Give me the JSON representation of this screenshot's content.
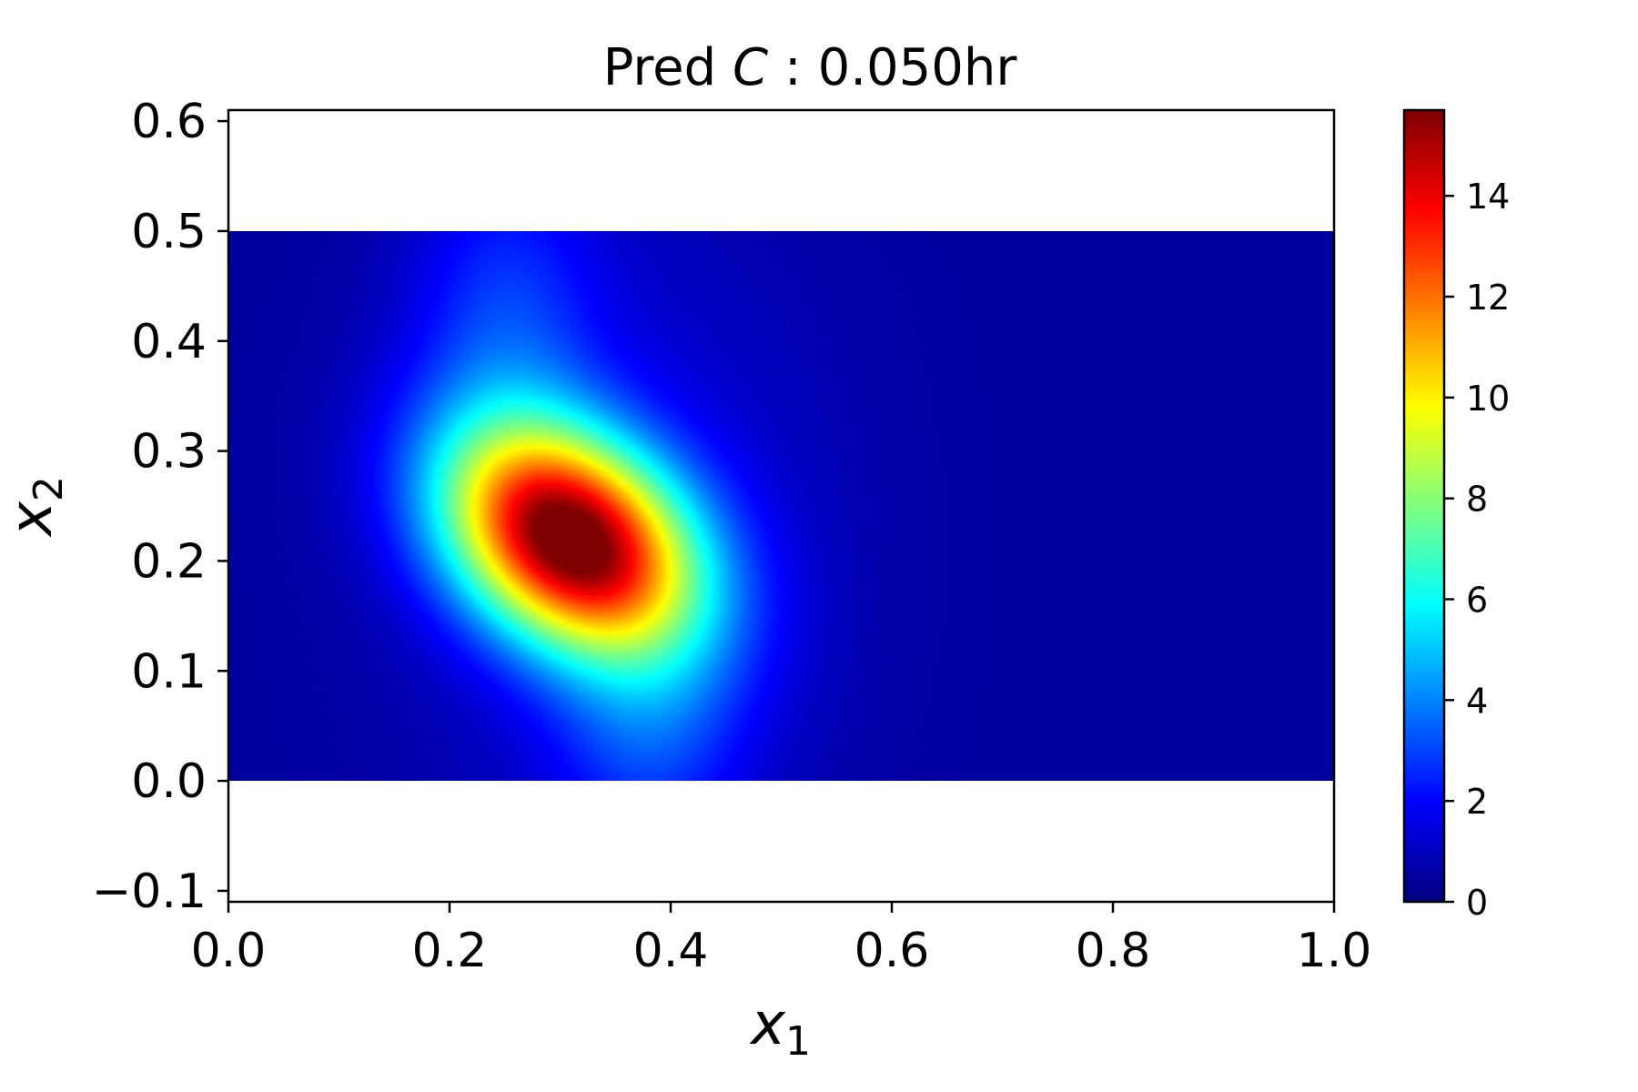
{
  "chart_data": {
    "type": "heatmap",
    "title": {
      "prefix": "Pred ",
      "variable": "C",
      "suffix": " :  0.050hr"
    },
    "xlabel": {
      "symbol": "x",
      "subscript": "1"
    },
    "ylabel": {
      "symbol": "x",
      "subscript": "2"
    },
    "xlim": [
      0.0,
      1.0
    ],
    "ylim": [
      -0.11,
      0.61
    ],
    "data_extent": {
      "x": [
        0.0,
        1.0
      ],
      "y": [
        0.0,
        0.5
      ]
    },
    "x_ticks": [
      {
        "value": 0.0,
        "label": "0.0"
      },
      {
        "value": 0.2,
        "label": "0.2"
      },
      {
        "value": 0.4,
        "label": "0.4"
      },
      {
        "value": 0.6,
        "label": "0.6"
      },
      {
        "value": 0.8,
        "label": "0.8"
      },
      {
        "value": 1.0,
        "label": "1.0"
      }
    ],
    "y_ticks": [
      {
        "value": -0.1,
        "label": "−0.1"
      },
      {
        "value": 0.0,
        "label": "0.0"
      },
      {
        "value": 0.1,
        "label": "0.1"
      },
      {
        "value": 0.2,
        "label": "0.2"
      },
      {
        "value": 0.3,
        "label": "0.3"
      },
      {
        "value": 0.4,
        "label": "0.4"
      },
      {
        "value": 0.5,
        "label": "0.5"
      },
      {
        "value": 0.6,
        "label": "0.6"
      }
    ],
    "colormap": "jet",
    "colorbar": {
      "min": 0,
      "max": 15.7,
      "ticks": [
        {
          "value": 0,
          "label": "0"
        },
        {
          "value": 2,
          "label": "2"
        },
        {
          "value": 4,
          "label": "4"
        },
        {
          "value": 6,
          "label": "6"
        },
        {
          "value": 8,
          "label": "8"
        },
        {
          "value": 10,
          "label": "10"
        },
        {
          "value": 12,
          "label": "12"
        },
        {
          "value": 14,
          "label": "14"
        }
      ]
    },
    "field": {
      "background": 0.45,
      "peak": {
        "x": 0.31,
        "y": 0.22,
        "value": 15.7
      },
      "notes_visible": "single elongated hot spot tilted from upper-left to lower-right, plume fading toward upper-left and lower-center"
    },
    "grid": false
  }
}
